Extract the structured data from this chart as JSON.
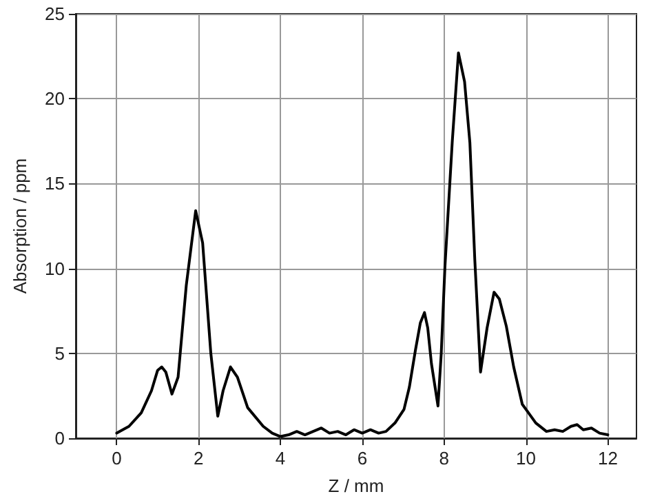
{
  "chart_data": {
    "type": "line",
    "xlabel": "Z / mm",
    "ylabel": "Absorption / ppm",
    "xlim": [
      -1,
      12.7
    ],
    "xticks": [
      0,
      2,
      4,
      6,
      8,
      10,
      12
    ],
    "ylim": [
      0,
      25
    ],
    "yticks": [
      0,
      5,
      10,
      15,
      20,
      25
    ],
    "grid": true,
    "marker": "none",
    "line_style": "solid",
    "series": [
      {
        "color": "#000000",
        "x": [
          0,
          0.3,
          0.6,
          0.85,
          1.0,
          1.1,
          1.2,
          1.35,
          1.5,
          1.7,
          1.93,
          2.1,
          2.3,
          2.47,
          2.6,
          2.78,
          2.95,
          3.2,
          3.58,
          3.8,
          4.0,
          4.2,
          4.4,
          4.6,
          4.8,
          5.0,
          5.2,
          5.4,
          5.6,
          5.8,
          6.0,
          6.2,
          6.4,
          6.58,
          6.8,
          7.02,
          7.15,
          7.3,
          7.42,
          7.52,
          7.6,
          7.69,
          7.78,
          7.85,
          7.93,
          8.02,
          8.2,
          8.35,
          8.5,
          8.63,
          8.75,
          8.89,
          9.05,
          9.22,
          9.35,
          9.52,
          9.7,
          9.91,
          10.24,
          10.5,
          10.7,
          10.9,
          11.1,
          11.25,
          11.4,
          11.6,
          11.8,
          12.0
        ],
        "values": [
          0.3,
          0.7,
          1.5,
          2.8,
          4.0,
          4.2,
          3.9,
          2.6,
          3.6,
          9.0,
          13.4,
          11.5,
          5.0,
          1.3,
          2.8,
          4.2,
          3.6,
          1.8,
          0.7,
          0.3,
          0.1,
          0.2,
          0.4,
          0.2,
          0.4,
          0.6,
          0.3,
          0.4,
          0.2,
          0.5,
          0.3,
          0.5,
          0.3,
          0.4,
          0.9,
          1.7,
          3.0,
          5.2,
          6.8,
          7.4,
          6.5,
          4.4,
          3.0,
          1.9,
          5.0,
          10.1,
          17.5,
          22.7,
          21.0,
          17.4,
          10.5,
          3.9,
          6.5,
          8.6,
          8.2,
          6.6,
          4.2,
          2.0,
          0.9,
          0.4,
          0.5,
          0.4,
          0.7,
          0.8,
          0.5,
          0.6,
          0.3,
          0.2
        ]
      }
    ]
  }
}
